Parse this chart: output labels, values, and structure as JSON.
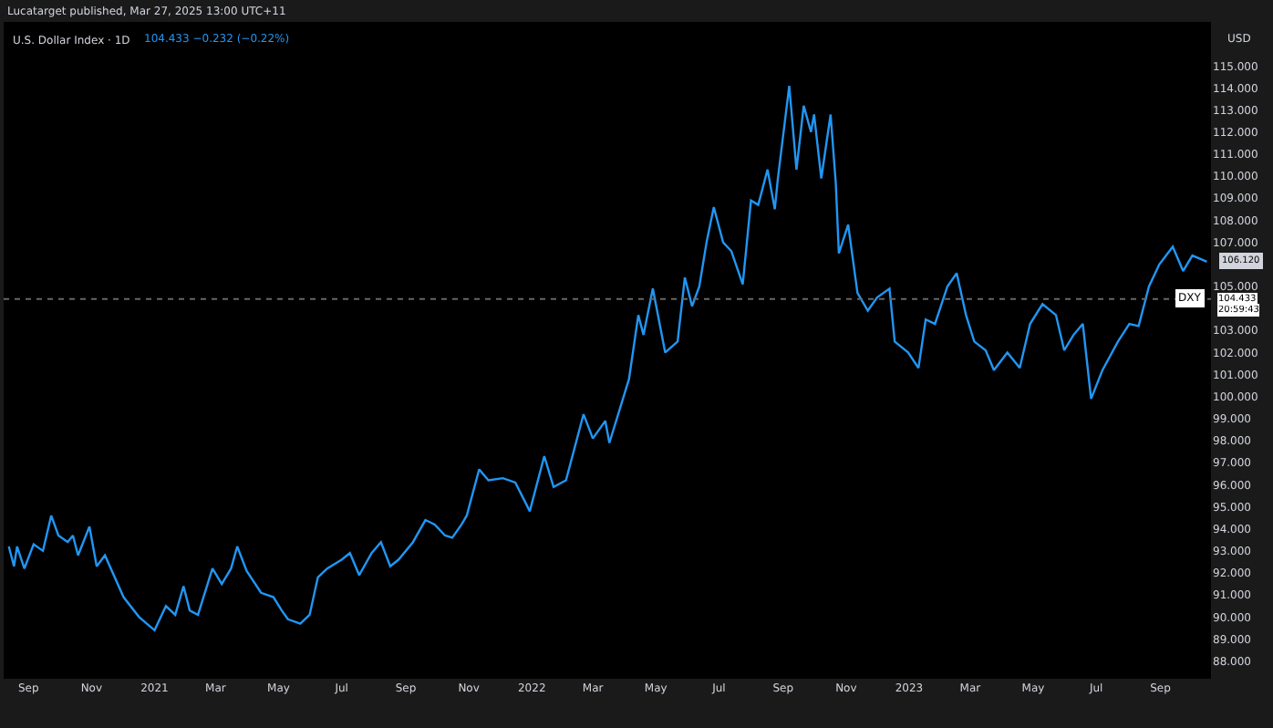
{
  "chart_data": {
    "type": "line",
    "title": "U.S. Dollar Index · 1D",
    "subtitle": "Lucatarget published, Mar 27, 2025 13:00 UTC+11",
    "annotations": [
      "104.433 −0.232 (−0.22%)",
      "USD",
      "20:59:43",
      "104.433",
      {
        "text": "106.120",
        "x": "2023-10-16",
        "y": 106.12
      }
    ],
    "x": [
      "2020-08-13",
      "2020-08-18",
      "2020-08-21",
      "2020-08-28",
      "2020-09-06",
      "2020-09-15",
      "2020-09-23",
      "2020-09-30",
      "2020-10-09",
      "2020-10-14",
      "2020-10-19",
      "2020-10-30",
      "2020-11-06",
      "2020-11-14",
      "2020-12-02",
      "2020-12-17",
      "2021-01-01",
      "2021-01-12",
      "2021-01-21",
      "2021-01-29",
      "2021-02-04",
      "2021-02-12",
      "2021-02-26",
      "2021-03-07",
      "2021-03-16",
      "2021-03-22",
      "2021-03-31",
      "2021-04-14",
      "2021-04-26",
      "2021-05-04",
      "2021-05-10",
      "2021-05-22",
      "2021-05-31",
      "2021-06-08",
      "2021-06-17",
      "2021-07-01",
      "2021-07-09",
      "2021-07-18",
      "2021-07-30",
      "2021-08-08",
      "2021-08-17",
      "2021-08-25",
      "2021-09-08",
      "2021-09-20",
      "2021-09-29",
      "2021-10-09",
      "2021-10-16",
      "2021-10-25",
      "2021-10-30",
      "2021-11-11",
      "2021-11-20",
      "2021-12-04",
      "2021-12-16",
      "2021-12-30",
      "2022-01-13",
      "2022-01-22",
      "2022-02-03",
      "2022-02-20",
      "2022-03-01",
      "2022-03-13",
      "2022-03-17",
      "2022-04-05",
      "2022-04-14",
      "2022-04-19",
      "2022-04-28",
      "2022-05-10",
      "2022-05-22",
      "2022-05-29",
      "2022-06-05",
      "2022-06-12",
      "2022-06-19",
      "2022-06-26",
      "2022-07-05",
      "2022-07-13",
      "2022-07-24",
      "2022-08-01",
      "2022-08-08",
      "2022-08-17",
      "2022-08-24",
      "2022-08-27",
      "2022-09-07",
      "2022-09-14",
      "2022-09-21",
      "2022-09-28",
      "2022-10-01",
      "2022-10-08",
      "2022-10-17",
      "2022-10-22",
      "2022-10-25",
      "2022-11-03",
      "2022-11-12",
      "2022-11-22",
      "2022-12-01",
      "2022-12-13",
      "2022-12-18",
      "2022-12-31",
      "2023-01-10",
      "2023-01-17",
      "2023-01-26",
      "2023-02-07",
      "2023-02-16",
      "2023-02-25",
      "2023-03-05",
      "2023-03-16",
      "2023-03-24",
      "2023-04-06",
      "2023-04-18",
      "2023-04-28",
      "2023-05-10",
      "2023-05-23",
      "2023-05-31",
      "2023-06-09",
      "2023-06-18",
      "2023-06-26",
      "2023-07-07",
      "2023-07-22",
      "2023-08-02",
      "2023-08-11",
      "2023-08-21",
      "2023-08-31",
      "2023-09-13",
      "2023-09-23",
      "2023-10-02",
      "2023-10-16"
    ],
    "series": [
      {
        "color": "#2196f3",
        "values": [
          93.2,
          92.3,
          93.2,
          92.2,
          93.3,
          93.0,
          94.6,
          93.7,
          93.4,
          93.7,
          92.8,
          94.1,
          92.3,
          92.8,
          90.9,
          90.0,
          89.4,
          90.5,
          90.1,
          91.4,
          90.3,
          90.1,
          92.2,
          91.5,
          92.2,
          93.2,
          92.1,
          91.1,
          90.9,
          90.3,
          89.9,
          89.7,
          90.1,
          91.8,
          92.2,
          92.6,
          92.9,
          91.9,
          92.9,
          93.4,
          92.3,
          92.6,
          93.4,
          94.4,
          94.2,
          93.7,
          93.6,
          94.2,
          94.6,
          96.7,
          96.2,
          96.3,
          96.1,
          94.8,
          97.3,
          95.9,
          96.2,
          99.2,
          98.1,
          98.9,
          97.9,
          100.8,
          103.7,
          102.8,
          104.9,
          102.0,
          102.5,
          105.4,
          104.1,
          105.0,
          107.0,
          108.6,
          107.0,
          106.6,
          105.1,
          108.9,
          108.7,
          110.3,
          108.5,
          109.9,
          114.1,
          110.3,
          113.2,
          112.0,
          112.8,
          109.9,
          112.8,
          109.7,
          106.5,
          107.8,
          104.7,
          103.9,
          104.5,
          104.9,
          102.5,
          102.0,
          101.3,
          103.5,
          103.3,
          105.0,
          105.6,
          103.7,
          102.5,
          102.1,
          101.2,
          102.0,
          101.3,
          103.3,
          104.2,
          103.7,
          102.1,
          102.8,
          103.3,
          99.9,
          101.2,
          102.5,
          103.3,
          103.2,
          105.0,
          106.0,
          106.8,
          105.7,
          106.4,
          106.12
        ]
      }
    ],
    "xlim": [
      "2020-08-08",
      "2023-10-20"
    ],
    "xticks": [
      {
        "value": "2020-09-01",
        "label": "Sep"
      },
      {
        "value": "2020-11-01",
        "label": "Nov"
      },
      {
        "value": "2021-01-01",
        "label": "2021"
      },
      {
        "value": "2021-03-01",
        "label": "Mar"
      },
      {
        "value": "2021-05-01",
        "label": "May"
      },
      {
        "value": "2021-07-01",
        "label": "Jul"
      },
      {
        "value": "2021-09-01",
        "label": "Sep"
      },
      {
        "value": "2021-11-01",
        "label": "Nov"
      },
      {
        "value": "2022-01-01",
        "label": "2022"
      },
      {
        "value": "2022-03-01",
        "label": "Mar"
      },
      {
        "value": "2022-05-01",
        "label": "May"
      },
      {
        "value": "2022-07-01",
        "label": "Jul"
      },
      {
        "value": "2022-09-01",
        "label": "Sep"
      },
      {
        "value": "2022-11-01",
        "label": "Nov"
      },
      {
        "value": "2023-01-01",
        "label": "2023"
      },
      {
        "value": "2023-03-01",
        "label": "Mar"
      },
      {
        "value": "2023-05-01",
        "label": "May"
      },
      {
        "value": "2023-07-01",
        "label": "Jul"
      },
      {
        "value": "2023-09-01",
        "label": "Sep"
      }
    ],
    "ylim": [
      87.2,
      117
    ],
    "yticks": [
      {
        "value": 88,
        "label": "88.000"
      },
      {
        "value": 89,
        "label": "89.000"
      },
      {
        "value": 90,
        "label": "90.000"
      },
      {
        "value": 91,
        "label": "91.000"
      },
      {
        "value": 92,
        "label": "92.000"
      },
      {
        "value": 93,
        "label": "93.000"
      },
      {
        "value": 94,
        "label": "94.000"
      },
      {
        "value": 95,
        "label": "95.000"
      },
      {
        "value": 96,
        "label": "96.000"
      },
      {
        "value": 97,
        "label": "97.000"
      },
      {
        "value": 98,
        "label": "98.000"
      },
      {
        "value": 99,
        "label": "99.000"
      },
      {
        "value": 100,
        "label": "100.000"
      },
      {
        "value": 101,
        "label": "101.000"
      },
      {
        "value": 102,
        "label": "102.000"
      },
      {
        "value": 103,
        "label": "103.000"
      },
      {
        "value": 105,
        "label": "105.000"
      },
      {
        "value": 107,
        "label": "107.000"
      },
      {
        "value": 108,
        "label": "108.000"
      },
      {
        "value": 109,
        "label": "109.000"
      },
      {
        "value": 110,
        "label": "110.000"
      },
      {
        "value": 111,
        "label": "111.000"
      },
      {
        "value": 112,
        "label": "112.000"
      },
      {
        "value": 113,
        "label": "113.000"
      },
      {
        "value": 114,
        "label": "114.000"
      },
      {
        "value": 115,
        "label": "115.000"
      }
    ],
    "ref_lines": [
      {
        "axis": "y",
        "value": 104.433,
        "label": "DXY",
        "color": "#666666",
        "line_style": "dotted"
      }
    ],
    "grid": false
  }
}
